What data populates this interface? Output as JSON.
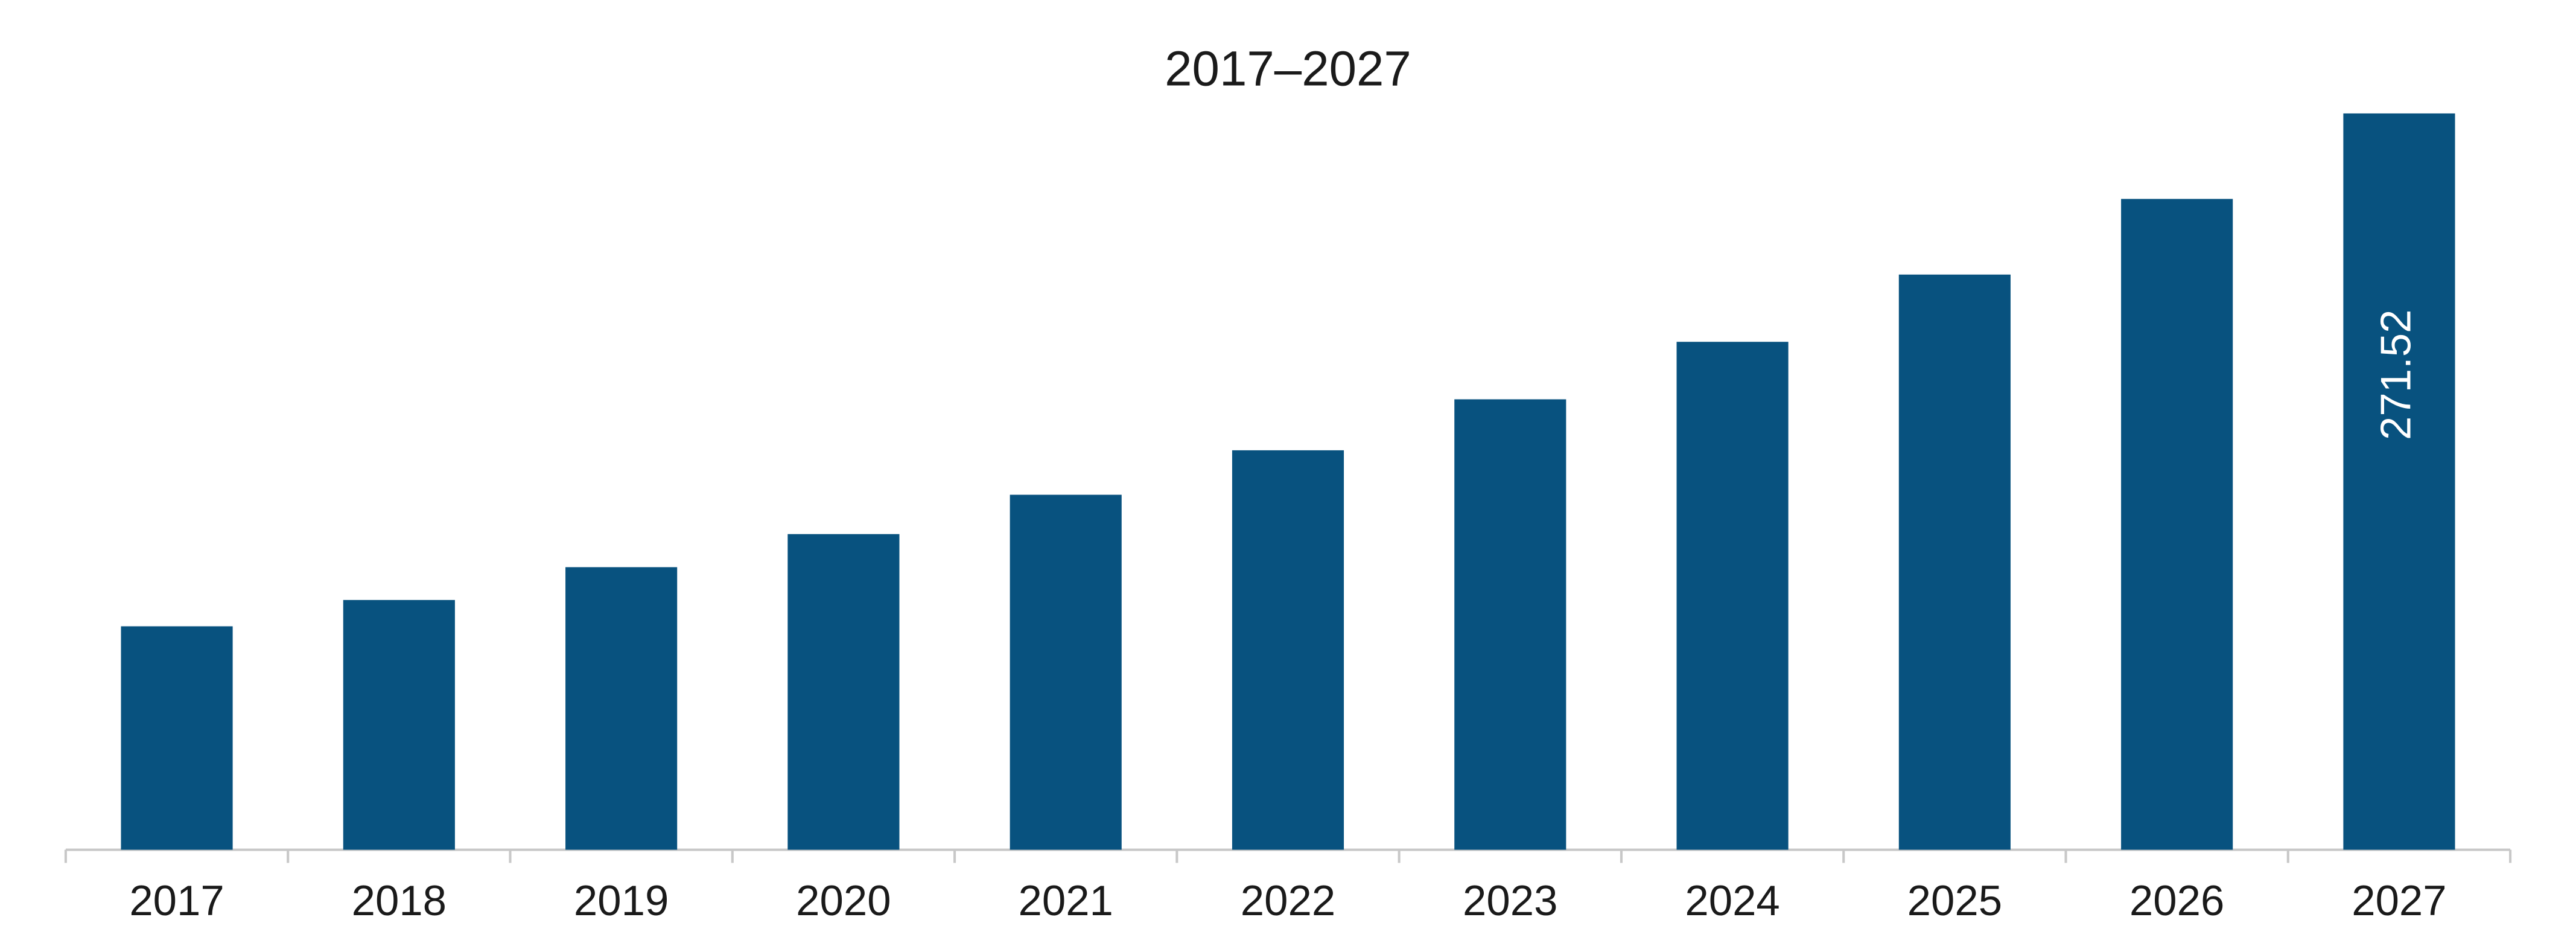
{
  "chart_data": {
    "type": "bar",
    "title": "2017–2027",
    "categories": [
      "2017",
      "2018",
      "2019",
      "2020",
      "2021",
      "2022",
      "2023",
      "2024",
      "2025",
      "2026",
      "2027"
    ],
    "values": [
      82.4,
      92.1,
      104.2,
      116.4,
      130.9,
      147.3,
      166.1,
      187.3,
      212.1,
      240.0,
      271.52
    ],
    "value_labels": [
      null,
      null,
      null,
      null,
      null,
      null,
      null,
      null,
      null,
      null,
      "271.52"
    ],
    "color": "#08527f"
  }
}
